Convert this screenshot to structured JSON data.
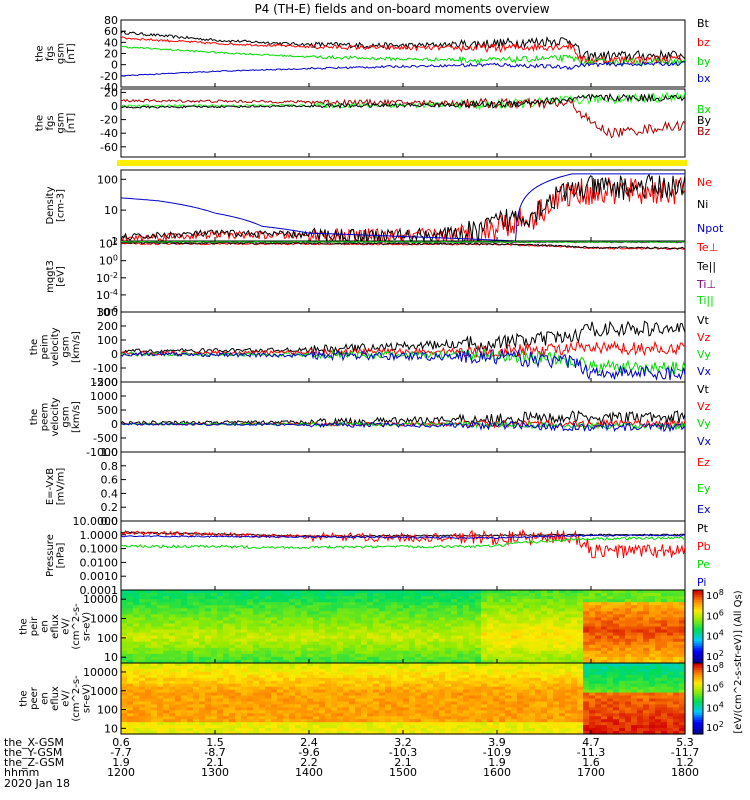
{
  "figure": {
    "title": "P4 (TH-E) fields and on-board moments overview",
    "date_label": "2020 Jan 18",
    "x_range": [
      1200,
      1800
    ],
    "x_ticks": [
      1200,
      1300,
      1400,
      1500,
      1600,
      1700,
      1800
    ],
    "footer_rows": [
      {
        "label": "the_X-GSM",
        "values": [
          "0.6",
          "1.5",
          "2.4",
          "3.2",
          "3.9",
          "4.7",
          "5.3"
        ]
      },
      {
        "label": "the_Y-GSM",
        "values": [
          "-7.7",
          "-8.7",
          "-9.6",
          "-10.3",
          "-10.9",
          "-11.3",
          "-11.7"
        ]
      },
      {
        "label": "the_Z-GSM",
        "values": [
          "1.9",
          "2.1",
          "2.2",
          "2.1",
          "1.9",
          "1.6",
          "1.2"
        ]
      },
      {
        "label": "hhmm",
        "values": [
          "1200",
          "1300",
          "1400",
          "1500",
          "1600",
          "1700",
          "1800"
        ]
      }
    ]
  },
  "colors": {
    "black": "#000000",
    "red": "#ff0000",
    "green": "#00dd00",
    "blue": "#0000cc",
    "darkred": "#aa0000",
    "purple": "#7a007a",
    "bright_green": "#22ff22",
    "status_bar": "#ffee00"
  },
  "chart_data": [
    {
      "type": "line",
      "id": "fgs_gsm1",
      "ylabel": [
        "the",
        "fgs",
        "gsm",
        "[nT]"
      ],
      "ylim": [
        -40,
        80
      ],
      "yticks": [
        "80",
        "60",
        "40",
        "20",
        "0",
        "-20",
        "-40"
      ],
      "series": [
        {
          "name": "Bt",
          "color": "#000000",
          "points": [
            [
              1200,
              58
            ],
            [
              1300,
              44
            ],
            [
              1400,
              36
            ],
            [
              1500,
              34
            ],
            [
              1600,
              38
            ],
            [
              1680,
              44
            ],
            [
              1690,
              15
            ],
            [
              1800,
              17
            ]
          ],
          "noise": 5
        },
        {
          "name": "bz",
          "color": "#ff0000",
          "points": [
            [
              1200,
              48
            ],
            [
              1300,
              38
            ],
            [
              1400,
              32
            ],
            [
              1500,
              30
            ],
            [
              1600,
              30
            ],
            [
              1680,
              34
            ],
            [
              1690,
              8
            ],
            [
              1800,
              10
            ]
          ],
          "noise": 4
        },
        {
          "name": "by",
          "color": "#00dd00",
          "points": [
            [
              1200,
              32
            ],
            [
              1300,
              22
            ],
            [
              1400,
              14
            ],
            [
              1500,
              10
            ],
            [
              1600,
              8
            ],
            [
              1680,
              12
            ],
            [
              1690,
              5
            ],
            [
              1800,
              5
            ]
          ],
          "noise": 3
        },
        {
          "name": "bx",
          "color": "#0000cc",
          "points": [
            [
              1200,
              -20
            ],
            [
              1300,
              -12
            ],
            [
              1400,
              -7
            ],
            [
              1500,
              -3
            ],
            [
              1600,
              0
            ],
            [
              1680,
              -5
            ],
            [
              1690,
              0
            ],
            [
              1800,
              2
            ]
          ],
          "noise": 2
        }
      ]
    },
    {
      "type": "line",
      "id": "fgs_gsm2",
      "ylabel": [
        "the",
        "fgs",
        "gsm",
        "[nT]"
      ],
      "ylim": [
        -75,
        25
      ],
      "yticks": [
        "20",
        "0",
        "-20",
        "-40",
        "-60"
      ],
      "series": [
        {
          "name": "Bx",
          "color": "#22ff22",
          "points": [
            [
              1200,
              0
            ],
            [
              1600,
              2
            ],
            [
              1680,
              8
            ],
            [
              1700,
              10
            ],
            [
              1800,
              14
            ]
          ],
          "noise": 4
        },
        {
          "name": "Bz",
          "color": "#aa0000",
          "points": [
            [
              1200,
              8
            ],
            [
              1500,
              5
            ],
            [
              1680,
              3
            ],
            [
              1700,
              -25
            ],
            [
              1720,
              -40
            ],
            [
              1800,
              -28
            ]
          ],
          "noise": 4
        },
        {
          "name": "By",
          "color": "#000000",
          "points": [
            [
              1200,
              -2
            ],
            [
              1600,
              2
            ],
            [
              1680,
              10
            ],
            [
              1700,
              12
            ],
            [
              1800,
              12
            ]
          ],
          "noise": 3
        }
      ]
    },
    {
      "type": "line",
      "id": "density",
      "scale": "log",
      "ylabel": [
        "Density",
        "[cm-3]"
      ],
      "ylim": [
        1,
        200
      ],
      "yticks": [
        "100",
        "10",
        "1"
      ],
      "series": [
        {
          "name": "Ne",
          "color": "#ff0000",
          "points": [
            [
              1200,
              1.2
            ],
            [
              1300,
              1.6
            ],
            [
              1400,
              1.5
            ],
            [
              1500,
              1.4
            ],
            [
              1580,
              1.6
            ],
            [
              1640,
              6
            ],
            [
              1690,
              40
            ],
            [
              1800,
              40
            ]
          ],
          "noise": 0.5
        },
        {
          "name": "Ni",
          "color": "#000000",
          "points": [
            [
              1200,
              1.3
            ],
            [
              1300,
              1.8
            ],
            [
              1400,
              1.6
            ],
            [
              1500,
              1.5
            ],
            [
              1580,
              1.8
            ],
            [
              1640,
              8
            ],
            [
              1690,
              50
            ],
            [
              1800,
              60
            ]
          ],
          "noise": 0.45
        },
        {
          "name": "Npot",
          "color": "#0000cc",
          "points": [
            [
              1200,
              25
            ],
            [
              1240,
              20
            ],
            [
              1300,
              8
            ],
            [
              1350,
              3
            ],
            [
              1400,
              1.8
            ],
            [
              1500,
              1.4
            ],
            [
              1620,
              1.0
            ],
            [
              1680,
              150
            ]
          ],
          "noise": 0
        }
      ]
    },
    {
      "type": "line",
      "id": "temperature",
      "scale": "log",
      "ylabel": [
        "mqgt3",
        "[eV]"
      ],
      "ylim": [
        1e-06,
        200
      ],
      "yticks": [
        "10^2",
        "10^0",
        "10^-2",
        "10^-4",
        "10^-6"
      ],
      "series": [
        {
          "name": "Te⊥",
          "color": "#ff0000",
          "points": [
            [
              1200,
              100
            ],
            [
              1600,
              80
            ],
            [
              1700,
              30
            ],
            [
              1800,
              25
            ]
          ],
          "noise": 0.2
        },
        {
          "name": "Te||",
          "color": "#000000",
          "points": [
            [
              1200,
              120
            ],
            [
              1600,
              90
            ],
            [
              1700,
              35
            ],
            [
              1800,
              30
            ]
          ],
          "noise": 0.2
        },
        {
          "name": "Ti⊥",
          "color": "#7a007a",
          "points": [
            [
              1200,
              150
            ],
            [
              1800,
              140
            ]
          ],
          "noise": 0.1
        },
        {
          "name": "Ti||",
          "color": "#00dd00",
          "points": [
            [
              1200,
              160
            ],
            [
              1800,
              150
            ]
          ],
          "noise": 0.1
        }
      ]
    },
    {
      "type": "line",
      "id": "peim_velocity",
      "ylabel": [
        "the",
        "peim",
        "velocity",
        "gsm",
        "[km/s]"
      ],
      "ylim": [
        -200,
        300
      ],
      "yticks": [
        "300",
        "200",
        "100",
        "0",
        "-100",
        "-200"
      ],
      "series": [
        {
          "name": "Vt",
          "color": "#000000",
          "points": [
            [
              1200,
              20
            ],
            [
              1400,
              30
            ],
            [
              1600,
              80
            ],
            [
              1680,
              120
            ],
            [
              1700,
              180
            ],
            [
              1800,
              180
            ]
          ],
          "noise": 30
        },
        {
          "name": "Vz",
          "color": "#ff0000",
          "points": [
            [
              1200,
              5
            ],
            [
              1600,
              20
            ],
            [
              1680,
              40
            ],
            [
              1700,
              40
            ],
            [
              1800,
              40
            ]
          ],
          "noise": 25
        },
        {
          "name": "Vy",
          "color": "#00dd00",
          "points": [
            [
              1200,
              0
            ],
            [
              1600,
              -10
            ],
            [
              1680,
              -40
            ],
            [
              1700,
              -90
            ],
            [
              1800,
              -100
            ]
          ],
          "noise": 25
        },
        {
          "name": "Vx",
          "color": "#0000cc",
          "points": [
            [
              1200,
              0
            ],
            [
              1600,
              -20
            ],
            [
              1680,
              -60
            ],
            [
              1700,
              -130
            ],
            [
              1800,
              -140
            ]
          ],
          "noise": 30
        }
      ]
    },
    {
      "type": "line",
      "id": "peem_velocity",
      "ylabel": [
        "the",
        "peem",
        "velocity",
        "gsm",
        "[km/s]"
      ],
      "ylim": [
        -1000,
        1500
      ],
      "yticks": [
        "1500",
        "1000",
        "500",
        "0",
        "-500",
        "-1000"
      ],
      "series": [
        {
          "name": "Vt",
          "color": "#000000",
          "points": [
            [
              1200,
              50
            ],
            [
              1400,
              60
            ],
            [
              1600,
              200
            ],
            [
              1690,
              250
            ],
            [
              1710,
              200
            ],
            [
              1800,
              250
            ]
          ],
          "noise": 120
        },
        {
          "name": "Vz",
          "color": "#ff0000",
          "points": [
            [
              1200,
              0
            ],
            [
              1600,
              0
            ],
            [
              1800,
              20
            ]
          ],
          "noise": 70
        },
        {
          "name": "Vy",
          "color": "#00dd00",
          "points": [
            [
              1200,
              0
            ],
            [
              1600,
              -20
            ],
            [
              1700,
              -80
            ],
            [
              1800,
              -80
            ]
          ],
          "noise": 60
        },
        {
          "name": "Vx",
          "color": "#0000cc",
          "points": [
            [
              1200,
              0
            ],
            [
              1600,
              -50
            ],
            [
              1700,
              -100
            ],
            [
              1800,
              -120
            ]
          ],
          "noise": 80
        }
      ]
    },
    {
      "type": "line",
      "id": "efield",
      "ylabel": [
        "E=-VxB",
        "[mV/m]"
      ],
      "ylim": [
        0,
        1
      ],
      "yticks": [
        "1.0",
        "0.8",
        "0.6",
        "0.4",
        "0.2",
        "0.0"
      ],
      "series": [
        {
          "name": "Ez",
          "color": "#ff0000",
          "points": []
        },
        {
          "name": "Ey",
          "color": "#00dd00",
          "points": []
        },
        {
          "name": "Ex",
          "color": "#0000cc",
          "points": []
        }
      ]
    },
    {
      "type": "line",
      "id": "pressure",
      "scale": "log",
      "ylabel": [
        "Pressure",
        "[nPa]"
      ],
      "ylim": [
        0.0001,
        10
      ],
      "yticks": [
        "10.0000",
        "1.0000",
        "0.1000",
        "0.0100",
        "0.0010",
        "0.0001"
      ],
      "series": [
        {
          "name": "Pt",
          "color": "#000000",
          "points": [
            [
              1200,
              1.5
            ],
            [
              1400,
              0.8
            ],
            [
              1600,
              0.9
            ],
            [
              1680,
              1.0
            ],
            [
              1800,
              1.0
            ]
          ],
          "noise": 0.1
        },
        {
          "name": "Pb",
          "color": "#ff0000",
          "points": [
            [
              1200,
              1.4
            ],
            [
              1400,
              0.7
            ],
            [
              1600,
              0.6
            ],
            [
              1680,
              0.7
            ],
            [
              1700,
              0.06
            ],
            [
              1800,
              0.07
            ]
          ],
          "noise": 0.6
        },
        {
          "name": "Pe",
          "color": "#00dd00",
          "points": [
            [
              1200,
              0.15
            ],
            [
              1400,
              0.12
            ],
            [
              1600,
              0.15
            ],
            [
              1690,
              0.5
            ],
            [
              1800,
              0.6
            ]
          ],
          "noise": 0.2
        },
        {
          "name": "Pi",
          "color": "#0000cc",
          "points": [
            [
              1200,
              0.8
            ],
            [
              1600,
              0.6
            ],
            [
              1700,
              0.9
            ],
            [
              1800,
              0.9
            ]
          ],
          "noise": 0.1
        }
      ]
    },
    {
      "type": "heatmap",
      "id": "peir_en_eflux",
      "ylabel": [
        "the",
        "peir",
        "en",
        "eflux",
        "eV/",
        "(cm^2-s-",
        "sr-eV)"
      ],
      "ylim": [
        5,
        30000
      ],
      "yticks": [
        "10000",
        "1000",
        "100",
        "10"
      ],
      "colorbar_label": "eV/(cm^2-s-sr-eV)",
      "colorbar_ticks": [
        "10^8",
        "10^6",
        "10^4",
        "10^2"
      ]
    },
    {
      "type": "heatmap",
      "id": "peer_en_eflux",
      "ylabel": [
        "the",
        "peer",
        "en",
        "eflux",
        "eV/",
        "(cm^2-s-",
        "sr-eV)"
      ],
      "ylim": [
        5,
        30000
      ],
      "yticks": [
        "10000",
        "1000",
        "100",
        "10"
      ],
      "colorbar_label": "eV/(cm^2-s-sr-eV)",
      "colorbar_ticks": [
        "10^8",
        "10^6",
        "10^4",
        "10^2"
      ]
    }
  ],
  "legends": {
    "fgs_gsm1": [
      "Bt",
      "bz",
      "by",
      "bx"
    ],
    "fgs_gsm2": [
      "Bx",
      "By",
      "Bz"
    ],
    "density": [
      "Ne",
      "Ni",
      "Npot"
    ],
    "temperature": [
      "Te⊥",
      "Te||",
      "Ti⊥",
      "Ti||"
    ],
    "peim_velocity": [
      "Vt",
      "Vz",
      "Vy",
      "Vx"
    ],
    "peem_velocity": [
      "Vt",
      "Vz",
      "Vy",
      "Vx"
    ],
    "efield": [
      "Ez",
      "Ey",
      "Ex"
    ],
    "pressure": [
      "Pt",
      "Pb",
      "Pe",
      "Pi"
    ]
  },
  "side_label": "[eV/(cm^2-s-str-eV)] (All Qs)"
}
